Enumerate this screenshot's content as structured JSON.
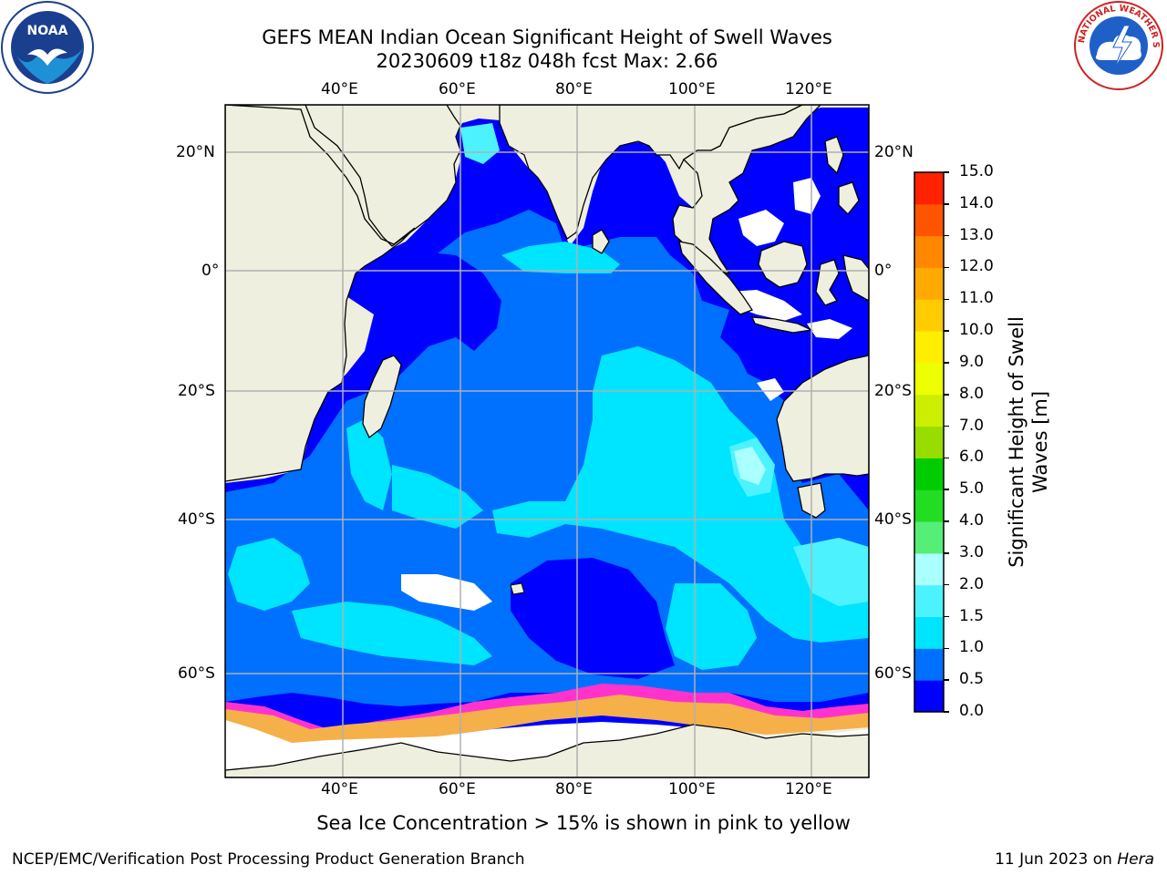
{
  "title": {
    "line1": "GEFS MEAN Indian Ocean Significant Height of Swell Waves",
    "line2": "20230609 t18z 048h fcst   Max: 2.66"
  },
  "logos": {
    "noaa_text": "NOAA",
    "noaa_ring": "NATIONAL OCEANIC AND ATMOSPHERIC ADMINISTRATION · U.S. DEPARTMENT OF COMMERCE",
    "nws_ring": "NATIONAL WEATHER SERVICE"
  },
  "map": {
    "lon_labels": [
      "40°E",
      "60°E",
      "80°E",
      "100°E",
      "120°E"
    ],
    "lat_labels_left": [
      "20°N",
      "0°",
      "20°S",
      "40°S",
      "60°S"
    ],
    "lat_labels_right": [
      "20°N",
      "0°",
      "20°S",
      "40°S",
      "60°S"
    ],
    "colors": {
      "land": "#efefdf",
      "grid": "#b0b0b0",
      "ice_pink": "#ff33cc",
      "ice_orange": "#f5b04a",
      "ice_white": "#ffffff"
    }
  },
  "colorbar": {
    "label_line1": "Significant Height of Swell",
    "label_line2": "Waves [m]",
    "ticks": [
      "0.0",
      "0.5",
      "1.0",
      "1.5",
      "2.0",
      "3.0",
      "4.0",
      "5.0",
      "6.0",
      "7.0",
      "8.0",
      "9.0",
      "10.0",
      "11.0",
      "12.0",
      "13.0",
      "14.0",
      "15.0"
    ],
    "colors": [
      "#0000ff",
      "#0070ff",
      "#00e5ff",
      "#4df2ff",
      "#aaffff",
      "#55ee77",
      "#22dd22",
      "#00cc00",
      "#99dd00",
      "#ccee00",
      "#eeff00",
      "#ffee00",
      "#ffcc00",
      "#ffaa00",
      "#ff8800",
      "#ff5500",
      "#ff2200"
    ]
  },
  "ice_note": "Sea Ice Concentration > 15% is shown in pink to yellow",
  "footer": {
    "left": "NCEP/EMC/Verification Post Processing Product Generation Branch",
    "right_prefix": "11 Jun 2023 on ",
    "right_host": "Hera"
  }
}
